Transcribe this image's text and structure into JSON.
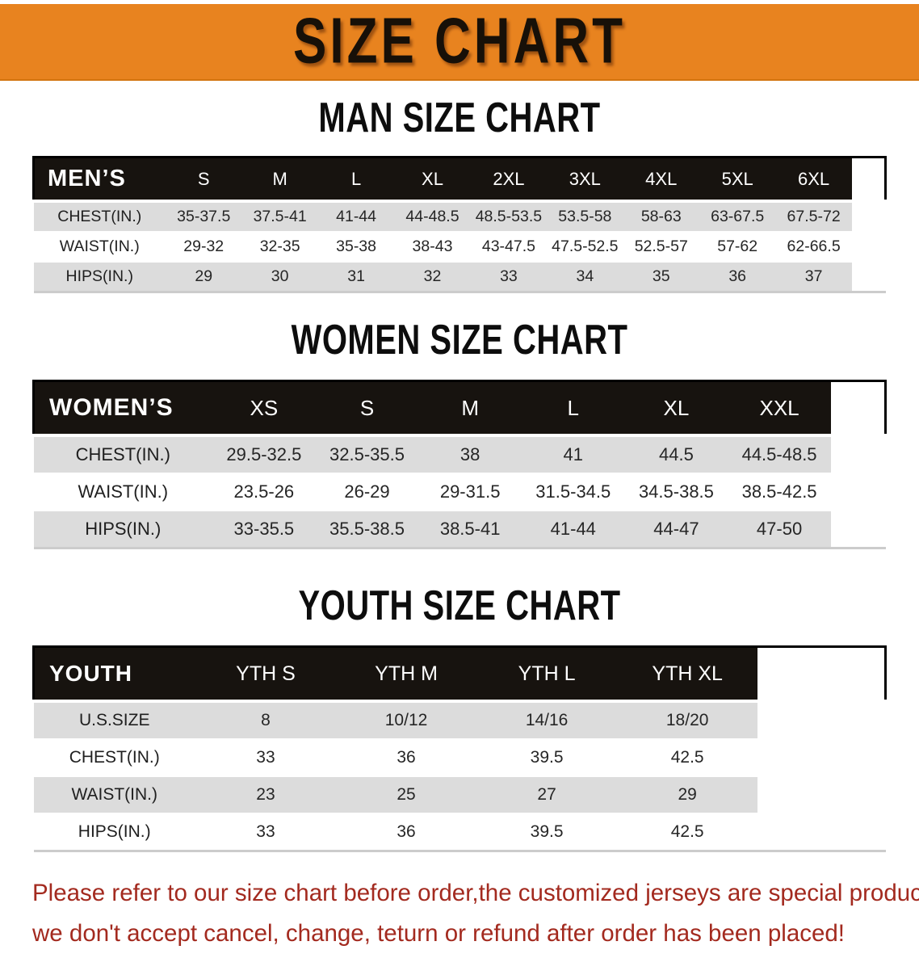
{
  "banner": {
    "title": "SIZE CHART"
  },
  "colors": {
    "banner_orange": "#E8831F",
    "bar_black": "#17130F",
    "stripe_gray": "#DCDCDC",
    "footer_red": "#A32A1F"
  },
  "sections": [
    {
      "heading": "MAN SIZE CHART",
      "table": {
        "group_label": "MEN’S",
        "columns": [
          "S",
          "M",
          "L",
          "XL",
          "2XL",
          "3XL",
          "4XL",
          "5XL",
          "6XL"
        ],
        "rows": [
          {
            "label": "CHEST(IN.)",
            "values": [
              "35-37.5",
              "37.5-41",
              "41-44",
              "44-48.5",
              "48.5-53.5",
              "53.5-58",
              "58-63",
              "63-67.5",
              "67.5-72"
            ]
          },
          {
            "label": "WAIST(IN.)",
            "values": [
              "29-32",
              "32-35",
              "35-38",
              "38-43",
              "43-47.5",
              "47.5-52.5",
              "52.5-57",
              "57-62",
              "62-66.5"
            ]
          },
          {
            "label": "HIPS(IN.)",
            "values": [
              "29",
              "30",
              "31",
              "32",
              "33",
              "34",
              "35",
              "36",
              "37"
            ]
          }
        ]
      }
    },
    {
      "heading": "WOMEN SIZE CHART",
      "table": {
        "group_label": "WOMEN’S",
        "columns": [
          "XS",
          "S",
          "M",
          "L",
          "XL",
          "XXL"
        ],
        "rows": [
          {
            "label": "CHEST(IN.)",
            "values": [
              "29.5-32.5",
              "32.5-35.5",
              "38",
              "41",
              "44.5",
              "44.5-48.5"
            ]
          },
          {
            "label": "WAIST(IN.)",
            "values": [
              "23.5-26",
              "26-29",
              "29-31.5",
              "31.5-34.5",
              "34.5-38.5",
              "38.5-42.5"
            ]
          },
          {
            "label": "HIPS(IN.)",
            "values": [
              "33-35.5",
              "35.5-38.5",
              "38.5-41",
              "41-44",
              "44-47",
              "47-50"
            ]
          }
        ]
      }
    },
    {
      "heading": "YOUTH SIZE CHART",
      "table": {
        "group_label": "YOUTH",
        "columns": [
          "YTH S",
          "YTH M",
          "YTH L",
          "YTH XL"
        ],
        "rows": [
          {
            "label": "U.S.SIZE",
            "values": [
              "8",
              "10/12",
              "14/16",
              "18/20"
            ]
          },
          {
            "label": "CHEST(IN.)",
            "values": [
              "33",
              "36",
              "39.5",
              "42.5"
            ]
          },
          {
            "label": "WAIST(IN.)",
            "values": [
              "23",
              "25",
              "27",
              "29"
            ]
          },
          {
            "label": "HIPS(IN.)",
            "values": [
              "33",
              "36",
              "39.5",
              "42.5"
            ]
          }
        ]
      }
    }
  ],
  "footer": {
    "line1": "Please refer to our size chart before order,the customized jerseys are special products,",
    "line2": "we don't accept cancel, change, teturn or refund after order has been placed!"
  }
}
